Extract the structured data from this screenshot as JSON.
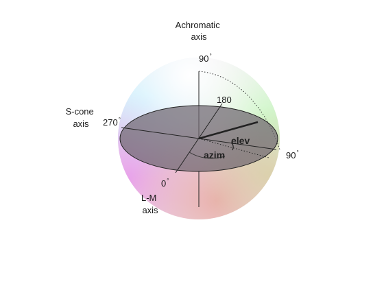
{
  "axes": {
    "achromatic": [
      "Achromatic",
      "axis"
    ],
    "s_cone": [
      "S-cone",
      "axis"
    ],
    "l_m": [
      "L-M",
      "axis"
    ]
  },
  "angles": {
    "top": "90",
    "left": "270",
    "back": "180",
    "right": "90",
    "front": "0",
    "degree_mark": "°"
  },
  "annotations": {
    "elevation": "elev",
    "azimuth": "azim"
  },
  "colors": {
    "plane_fill": "#6f6670",
    "outline": "#222222"
  }
}
